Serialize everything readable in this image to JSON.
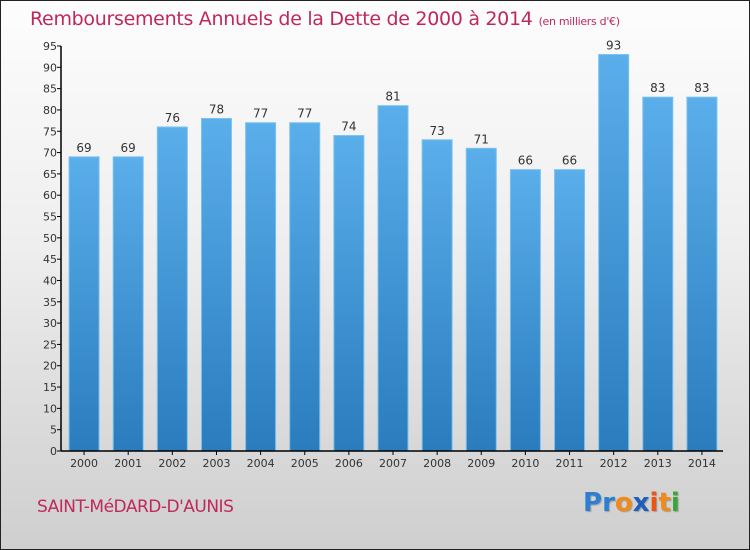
{
  "header": {
    "title": "Remboursements Annuels de la Dette de 2000 à 2014",
    "unit": "(en milliers d'€)"
  },
  "footer": {
    "city": "SAINT-MéDARD-D'AUNIS",
    "logo": {
      "letters": [
        {
          "char": "P",
          "color": "#2e7fd0"
        },
        {
          "char": "r",
          "color": "#2e7fd0"
        },
        {
          "char": "o",
          "color": "#f08a1c"
        },
        {
          "char": "x",
          "color": "#1f5fb8"
        },
        {
          "char": "i",
          "color": "#e8541a"
        },
        {
          "char": "t",
          "color": "#f08a1c"
        },
        {
          "char": "i",
          "color": "#3aa53a"
        }
      ]
    }
  },
  "colors": {
    "title": "#c0285a",
    "bar_top": "#5aaeea",
    "bar_bottom": "#2a7cbd",
    "axis": "#000000",
    "label": "#333333"
  },
  "chart_data": {
    "type": "bar",
    "title": "Remboursements Annuels de la Dette de 2000 à 2014",
    "subtitle": "(en milliers d'€)",
    "xlabel": "",
    "ylabel": "",
    "categories": [
      "2000",
      "2001",
      "2002",
      "2003",
      "2004",
      "2005",
      "2006",
      "2007",
      "2008",
      "2009",
      "2010",
      "2011",
      "2012",
      "2013",
      "2014"
    ],
    "values": [
      69,
      69,
      76,
      78,
      77,
      77,
      74,
      81,
      73,
      71,
      66,
      66,
      93,
      83,
      83
    ],
    "ylim": [
      0,
      95
    ],
    "yticks": [
      0,
      5,
      10,
      15,
      20,
      25,
      30,
      35,
      40,
      45,
      50,
      55,
      60,
      65,
      70,
      75,
      80,
      85,
      90,
      95
    ],
    "grid": false,
    "data_labels": true,
    "legend": "none"
  }
}
